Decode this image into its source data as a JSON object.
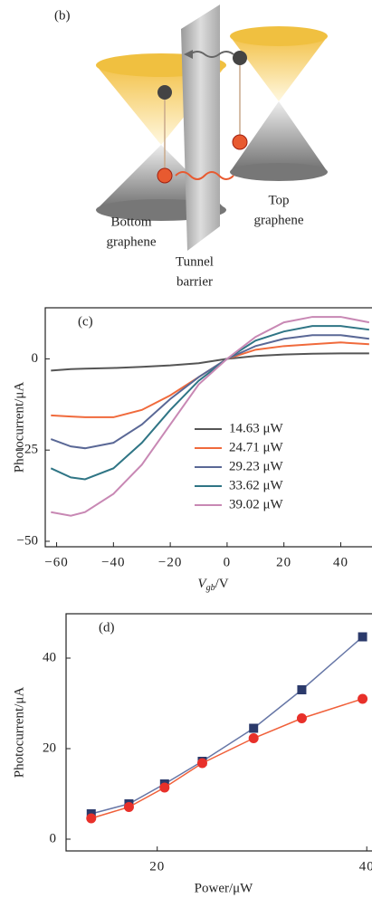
{
  "diagram": {
    "label": "(b)",
    "bottom": [
      "Bottom",
      "graphene"
    ],
    "barrier": [
      "Tunnel",
      "barrier"
    ],
    "top": [
      "Top",
      "graphene"
    ]
  },
  "chart_data": [
    {
      "type": "line",
      "label": "(c)",
      "ylabel": "Photocurrent/μA",
      "xlabel": {
        "main": "V",
        "sub": "gb",
        "unit": "/V"
      },
      "x": [
        -62,
        -55,
        -50,
        -40,
        -30,
        -20,
        -10,
        0,
        10,
        20,
        30,
        40,
        50
      ],
      "series": [
        {
          "name": "14.63 μW",
          "color": "#555555",
          "values": [
            -3.2,
            -2.8,
            -2.7,
            -2.5,
            -2.2,
            -1.8,
            -1.2,
            0,
            0.8,
            1.2,
            1.4,
            1.5,
            1.5
          ]
        },
        {
          "name": "24.71 μW",
          "color": "#f06a3c",
          "values": [
            -15.5,
            -15.8,
            -16,
            -16,
            -14,
            -10,
            -5,
            0,
            2.5,
            3.5,
            4,
            4.5,
            4
          ]
        },
        {
          "name": "29.23 μW",
          "color": "#5a6896",
          "values": [
            -22,
            -24,
            -24.5,
            -23,
            -18,
            -11,
            -5,
            0,
            3.5,
            5.5,
            6.5,
            6.5,
            5.5
          ]
        },
        {
          "name": "33.62 μW",
          "color": "#2f7585",
          "values": [
            -30,
            -32.5,
            -33,
            -30,
            -23,
            -14,
            -6,
            0,
            5,
            7.5,
            9,
            9,
            8
          ]
        },
        {
          "name": "39.02 μW",
          "color": "#c888b4",
          "values": [
            -42,
            -43,
            -42,
            -37,
            -29,
            -18,
            -7,
            0,
            6,
            10,
            11.5,
            11.5,
            10
          ]
        }
      ],
      "xlim": [
        -64,
        51
      ],
      "ylim": [
        -51.5,
        14
      ],
      "xticks": [
        {
          "value": -60,
          "label": "−60"
        },
        {
          "value": -40,
          "label": "−40"
        },
        {
          "value": -20,
          "label": "−20"
        },
        0,
        20,
        40
      ],
      "yticks": [
        {
          "value": -50,
          "label": "−50"
        },
        {
          "value": -25,
          "label": "−25"
        },
        0
      ],
      "legend": "center-right"
    },
    {
      "type": "line",
      "label": "(d)",
      "ylabel": "Photocurrent/μA",
      "xlabel": "Power/μW",
      "x": [
        13.7,
        17.3,
        20.7,
        24.3,
        29.2,
        33.8,
        39.6
      ],
      "series": [
        {
          "color": "#2b3a6b",
          "line": "#6676a6",
          "marker": "square",
          "values": [
            5.6,
            7.8,
            12.2,
            17.2,
            24.5,
            33,
            44.7
          ]
        },
        {
          "color": "#e8302a",
          "line": "#f0603a",
          "marker": "circle",
          "values": [
            4.6,
            7.1,
            11.4,
            16.8,
            22.3,
            26.7,
            31
          ]
        }
      ],
      "xlim": [
        11.3,
        40.5
      ],
      "ylim": [
        -2.6,
        49.8
      ],
      "xticks": [
        20,
        40
      ],
      "yticks": [
        0,
        20,
        40
      ]
    }
  ]
}
